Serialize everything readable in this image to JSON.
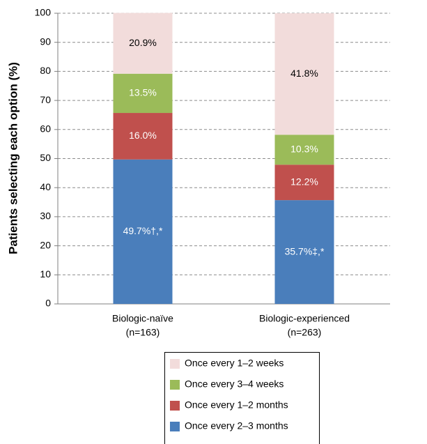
{
  "chart_data": {
    "type": "stacked-bar",
    "y_label": "Patients selecting each option (%)",
    "categories": [
      [
        "Biologic-naïve",
        "(n=163)"
      ],
      [
        "Biologic-experienced",
        "(n=263)"
      ]
    ],
    "series": [
      {
        "name": "Once every 2–3 months",
        "color": "#4a7ebb",
        "label_color": "#ffffff",
        "values": [
          49.7,
          35.7
        ],
        "value_labels": [
          "49.7%†,*",
          "35.7%‡,*"
        ]
      },
      {
        "name": "Once every 1–2 months",
        "color": "#c0504d",
        "label_color": "#ffffff",
        "values": [
          16.0,
          12.2
        ],
        "value_labels": [
          "16.0%",
          "12.2%"
        ]
      },
      {
        "name": "Once every 3–4 weeks",
        "color": "#9bbb59",
        "label_color": "#ffffff",
        "values": [
          13.5,
          10.3
        ],
        "value_labels": [
          "13.5%",
          "10.3%"
        ]
      },
      {
        "name": "Once every 1–2 weeks",
        "color": "#f2dcdb",
        "label_color": "#000000",
        "values": [
          20.9,
          41.8
        ],
        "value_labels": [
          "20.9%",
          "41.8%"
        ]
      }
    ],
    "ylim": [
      0,
      100
    ],
    "yticks": [
      0,
      10,
      20,
      30,
      40,
      50,
      60,
      70,
      80,
      90,
      100
    ],
    "grid": true
  }
}
